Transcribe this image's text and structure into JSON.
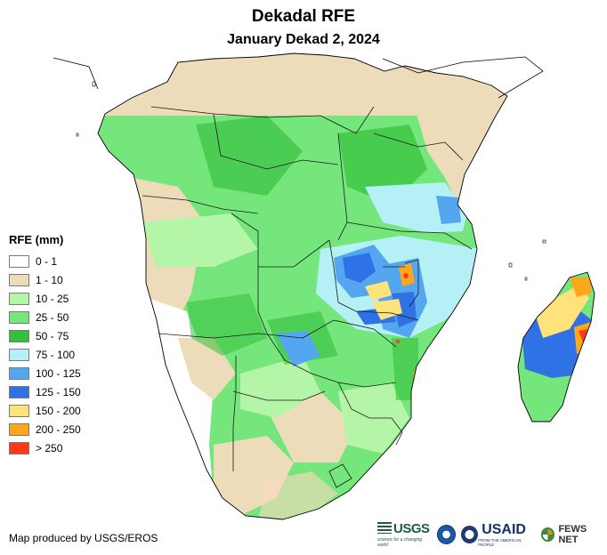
{
  "title": "Dekadal RFE",
  "subtitle": "January Dekad 2, 2024",
  "legend": {
    "title": "RFE (mm)",
    "items": [
      {
        "label": "0 - 1",
        "color": "#ffffff"
      },
      {
        "label": "1 - 10",
        "color": "#ecdcba"
      },
      {
        "label": "10 - 25",
        "color": "#b4f5a8"
      },
      {
        "label": "25 - 50",
        "color": "#74e67b"
      },
      {
        "label": "50 - 75",
        "color": "#34c03c"
      },
      {
        "label": "75 - 100",
        "color": "#b4f0f5"
      },
      {
        "label": "100 - 125",
        "color": "#55a6f0"
      },
      {
        "label": "125 - 150",
        "color": "#2e72e6"
      },
      {
        "label": "150 - 200",
        "color": "#ffe27a"
      },
      {
        "label": "200 - 250",
        "color": "#ffa71a"
      },
      {
        "label": "> 250",
        "color": "#ff3a1a"
      }
    ]
  },
  "credit": "Map produced by USGS/EROS",
  "logos": {
    "usgs": "USGS",
    "usgs_tagline": "science for a changing world",
    "usaid": "USAID",
    "usaid_tagline": "FROM THE AMERICAN PEOPLE",
    "fews": "FEWS NET"
  }
}
